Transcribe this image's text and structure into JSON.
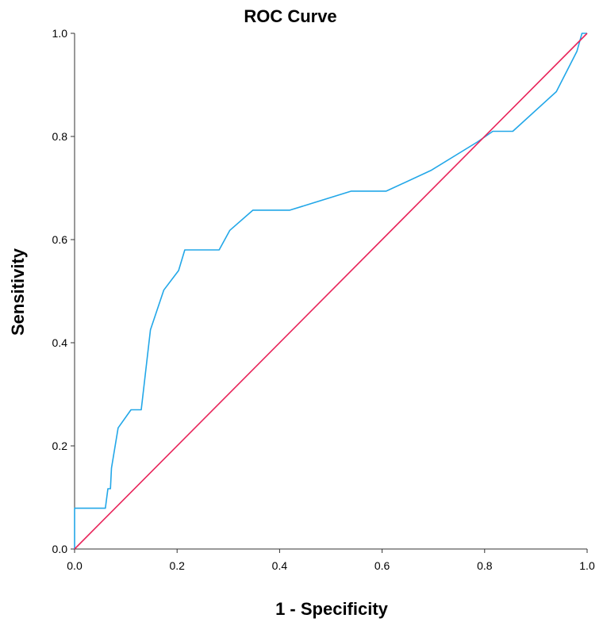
{
  "chart_data": {
    "type": "line",
    "title": "ROC Curve",
    "xlabel": "1 - Specificity",
    "ylabel": "Sensitivity",
    "xlim": [
      0.0,
      1.0
    ],
    "ylim": [
      0.0,
      1.0
    ],
    "x_ticks": [
      "0.0",
      "0.2",
      "0.4",
      "0.6",
      "0.8",
      "1.0"
    ],
    "y_ticks": [
      "0.0",
      "0.2",
      "0.4",
      "0.6",
      "0.8",
      "1.0"
    ],
    "grid": false,
    "legend": "none",
    "series": [
      {
        "color": "#22a7e8",
        "x": [
          0.0,
          0.0,
          0.06,
          0.065,
          0.07,
          0.072,
          0.085,
          0.11,
          0.13,
          0.148,
          0.174,
          0.203,
          0.215,
          0.282,
          0.303,
          0.348,
          0.42,
          0.54,
          0.608,
          0.695,
          0.787,
          0.816,
          0.855,
          0.94,
          0.98,
          0.99,
          1.0
        ],
        "y": [
          0.0,
          0.079,
          0.079,
          0.117,
          0.117,
          0.157,
          0.235,
          0.27,
          0.27,
          0.425,
          0.502,
          0.54,
          0.58,
          0.58,
          0.618,
          0.657,
          0.657,
          0.694,
          0.694,
          0.734,
          0.79,
          0.81,
          0.81,
          0.887,
          0.965,
          1.0,
          1.0
        ]
      },
      {
        "color": "#e8245a",
        "x": [
          0.0,
          1.0
        ],
        "y": [
          0.0,
          1.0
        ]
      }
    ]
  }
}
